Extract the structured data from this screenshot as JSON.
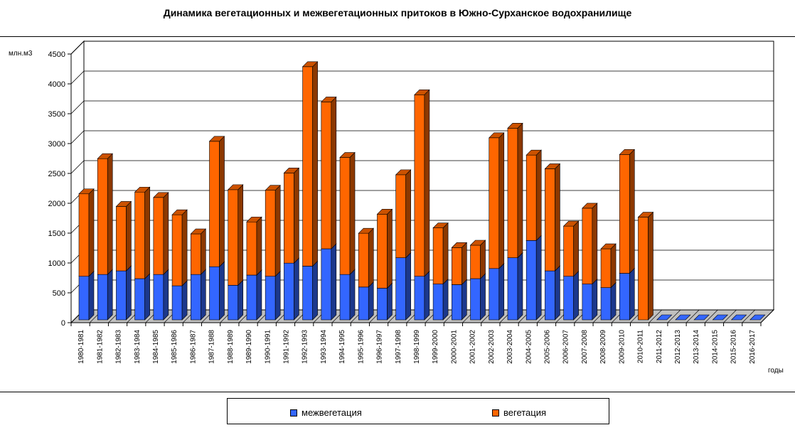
{
  "chart_data": {
    "type": "bar",
    "stacked": true,
    "three_d": true,
    "title": "Динамика вегетационных и межвегетационных притоков в Южно-Сурханское  водохранилище",
    "ylabel": "млн.м3",
    "xlabel": "годы",
    "ylim": [
      0,
      4500
    ],
    "yticks": [
      0,
      500,
      1000,
      1500,
      2000,
      2500,
      3000,
      3500,
      4000,
      4500
    ],
    "grid": true,
    "legend_position": "bottom",
    "categories": [
      "1980-1981",
      "1981-1982",
      "1982-1983",
      "1983-1984",
      "1984-1985",
      "1985-1986",
      "1986-1987",
      "1987-1988",
      "1988-1989",
      "1989-1990",
      "1990-1991",
      "1991-1992",
      "1992-1993",
      "1993-1994",
      "1994-1995",
      "1995-1996",
      "1996-1997",
      "1997-1998",
      "1998-1999",
      "1999-2000",
      "2000-2001",
      "2001-2002",
      "2002-2003",
      "2003-2004",
      "2004-2005",
      "2005-2006",
      "2006-2007",
      "2007-2008",
      "2008-2009",
      "2009-2010",
      "2010-2011",
      "2011-2012",
      "2012-2013",
      "2013-2014",
      "2014-2015",
      "2015-2016",
      "2016-2017"
    ],
    "series": [
      {
        "name": "межвегетация",
        "color": "#3366FF",
        "values": [
          730,
          760,
          820,
          690,
          760,
          570,
          760,
          890,
          580,
          750,
          730,
          950,
          900,
          1190,
          760,
          550,
          530,
          1040,
          730,
          600,
          590,
          690,
          860,
          1040,
          1330,
          820,
          730,
          600,
          540,
          780,
          0,
          0,
          0,
          0,
          0,
          0,
          0
        ]
      },
      {
        "name": "вегетация",
        "color": "#FF6600",
        "values": [
          1380,
          1940,
          1080,
          1450,
          1290,
          1190,
          680,
          2100,
          1600,
          890,
          1440,
          1510,
          3340,
          2460,
          1960,
          900,
          1240,
          1390,
          3040,
          940,
          620,
          560,
          2190,
          2170,
          1430,
          1710,
          840,
          1270,
          650,
          1990,
          1720,
          0,
          0,
          0,
          0,
          0,
          0
        ]
      }
    ]
  }
}
